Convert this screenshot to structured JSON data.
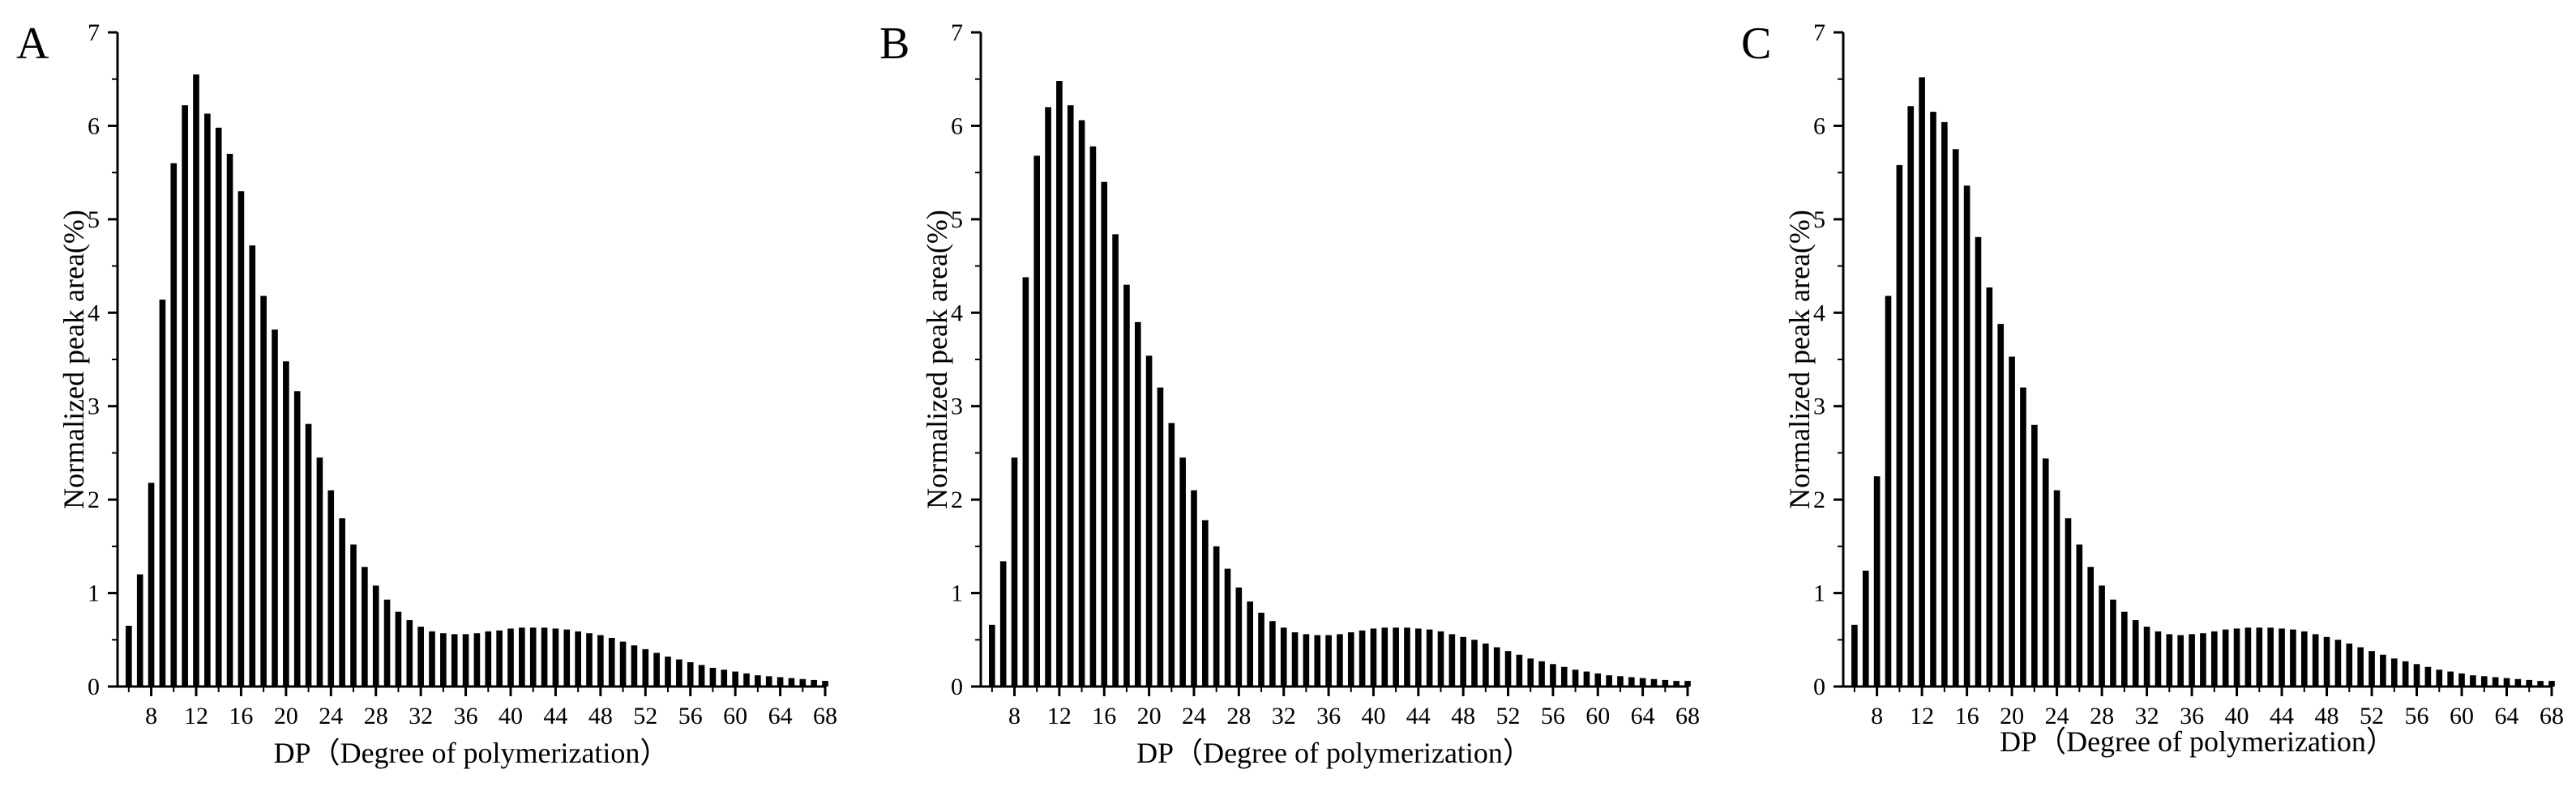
{
  "chart_data": [
    {
      "type": "bar",
      "panel_label": "A",
      "xlabel": "DP（Degree of polymerization）",
      "ylabel": "Normalized peak area(%)",
      "x": [
        6,
        7,
        8,
        9,
        10,
        11,
        12,
        13,
        14,
        15,
        16,
        17,
        18,
        19,
        20,
        21,
        22,
        23,
        24,
        25,
        26,
        27,
        28,
        29,
        30,
        31,
        32,
        33,
        34,
        35,
        36,
        37,
        38,
        39,
        40,
        41,
        42,
        43,
        44,
        45,
        46,
        47,
        48,
        49,
        50,
        51,
        52,
        53,
        54,
        55,
        56,
        57,
        58,
        59,
        60,
        61,
        62,
        63,
        64,
        65,
        66,
        67,
        68
      ],
      "values": [
        0.65,
        1.2,
        2.18,
        4.14,
        5.6,
        6.22,
        6.55,
        6.13,
        5.98,
        5.7,
        5.3,
        4.72,
        4.18,
        3.82,
        3.48,
        3.16,
        2.81,
        2.45,
        2.1,
        1.8,
        1.52,
        1.28,
        1.08,
        0.93,
        0.8,
        0.71,
        0.64,
        0.59,
        0.57,
        0.56,
        0.56,
        0.57,
        0.59,
        0.6,
        0.62,
        0.63,
        0.63,
        0.63,
        0.62,
        0.61,
        0.59,
        0.57,
        0.55,
        0.52,
        0.48,
        0.44,
        0.4,
        0.36,
        0.32,
        0.29,
        0.26,
        0.23,
        0.2,
        0.18,
        0.16,
        0.14,
        0.12,
        0.11,
        0.1,
        0.09,
        0.08,
        0.07,
        0.06
      ],
      "xlim": [
        5,
        68
      ],
      "ylim": [
        0,
        7
      ],
      "xticks": [
        8,
        12,
        16,
        20,
        24,
        28,
        32,
        36,
        40,
        44,
        48,
        52,
        56,
        60,
        64,
        68
      ],
      "yticks": [
        0,
        1,
        2,
        3,
        4,
        5,
        6,
        7
      ],
      "grid": false
    },
    {
      "type": "bar",
      "panel_label": "B",
      "xlabel": "DP（Degree of polymerization）",
      "ylabel": "Normalized peak area(%)",
      "x": [
        6,
        7,
        8,
        9,
        10,
        11,
        12,
        13,
        14,
        15,
        16,
        17,
        18,
        19,
        20,
        21,
        22,
        23,
        24,
        25,
        26,
        27,
        28,
        29,
        30,
        31,
        32,
        33,
        34,
        35,
        36,
        37,
        38,
        39,
        40,
        41,
        42,
        43,
        44,
        45,
        46,
        47,
        48,
        49,
        50,
        51,
        52,
        53,
        54,
        55,
        56,
        57,
        58,
        59,
        60,
        61,
        62,
        63,
        64,
        65,
        66,
        67,
        68
      ],
      "values": [
        0.66,
        1.34,
        2.45,
        4.38,
        5.68,
        6.2,
        6.48,
        6.22,
        6.06,
        5.78,
        5.4,
        4.84,
        4.3,
        3.9,
        3.54,
        3.2,
        2.82,
        2.45,
        2.1,
        1.78,
        1.5,
        1.26,
        1.06,
        0.91,
        0.79,
        0.7,
        0.63,
        0.58,
        0.56,
        0.55,
        0.55,
        0.56,
        0.58,
        0.6,
        0.62,
        0.63,
        0.63,
        0.63,
        0.62,
        0.61,
        0.59,
        0.56,
        0.53,
        0.5,
        0.46,
        0.42,
        0.38,
        0.34,
        0.3,
        0.27,
        0.24,
        0.21,
        0.18,
        0.16,
        0.14,
        0.12,
        0.11,
        0.1,
        0.09,
        0.08,
        0.07,
        0.06,
        0.06
      ],
      "xlim": [
        5,
        68
      ],
      "ylim": [
        0,
        7
      ],
      "xticks": [
        8,
        12,
        16,
        20,
        24,
        28,
        32,
        36,
        40,
        44,
        48,
        52,
        56,
        60,
        64,
        68
      ],
      "yticks": [
        0,
        1,
        2,
        3,
        4,
        5,
        6,
        7
      ],
      "grid": false
    },
    {
      "type": "bar",
      "panel_label": "C",
      "xlabel": "DP（Degree of polymerization）",
      "ylabel": "Normalized peak area(%)",
      "x": [
        6,
        7,
        8,
        9,
        10,
        11,
        12,
        13,
        14,
        15,
        16,
        17,
        18,
        19,
        20,
        21,
        22,
        23,
        24,
        25,
        26,
        27,
        28,
        29,
        30,
        31,
        32,
        33,
        34,
        35,
        36,
        37,
        38,
        39,
        40,
        41,
        42,
        43,
        44,
        45,
        46,
        47,
        48,
        49,
        50,
        51,
        52,
        53,
        54,
        55,
        56,
        57,
        58,
        59,
        60,
        61,
        62,
        63,
        64,
        65,
        66,
        67,
        68
      ],
      "values": [
        0.66,
        1.24,
        2.25,
        4.18,
        5.58,
        6.21,
        6.52,
        6.15,
        6.04,
        5.75,
        5.36,
        4.81,
        4.27,
        3.88,
        3.53,
        3.2,
        2.8,
        2.44,
        2.1,
        1.8,
        1.52,
        1.28,
        1.08,
        0.93,
        0.8,
        0.71,
        0.64,
        0.59,
        0.56,
        0.55,
        0.56,
        0.57,
        0.59,
        0.61,
        0.62,
        0.63,
        0.63,
        0.63,
        0.62,
        0.61,
        0.59,
        0.56,
        0.53,
        0.5,
        0.46,
        0.42,
        0.38,
        0.34,
        0.3,
        0.27,
        0.24,
        0.21,
        0.18,
        0.16,
        0.14,
        0.12,
        0.11,
        0.1,
        0.09,
        0.08,
        0.07,
        0.06,
        0.06
      ],
      "xlim": [
        5,
        68
      ],
      "ylim": [
        0,
        7
      ],
      "xticks": [
        8,
        12,
        16,
        20,
        24,
        28,
        32,
        36,
        40,
        44,
        48,
        52,
        56,
        60,
        64,
        68
      ],
      "yticks": [
        0,
        1,
        2,
        3,
        4,
        5,
        6,
        7
      ],
      "grid": false
    }
  ],
  "colors": {
    "bar": "#000000",
    "axis": "#000000",
    "background": "#ffffff"
  }
}
